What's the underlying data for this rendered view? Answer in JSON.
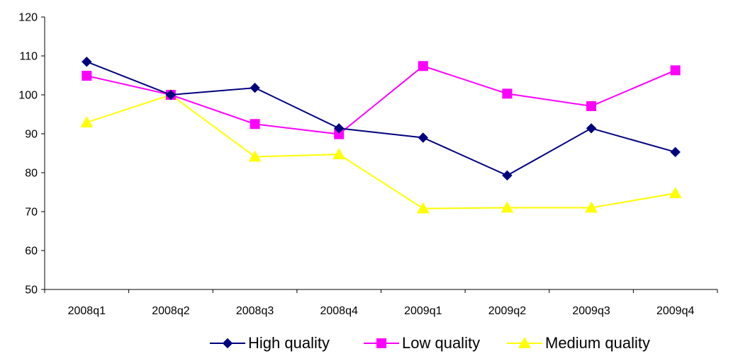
{
  "chart_data": {
    "type": "line",
    "categories": [
      "2008q1",
      "2008q2",
      "2008q3",
      "2008q4",
      "2009q1",
      "2009q2",
      "2009q3",
      "2009q4"
    ],
    "series": [
      {
        "name": "High quality",
        "color": "#00007F",
        "marker": "diamond",
        "values": [
          108.5,
          100.0,
          101.8,
          91.4,
          89.0,
          79.3,
          91.4,
          85.3
        ]
      },
      {
        "name": "Low quality",
        "color": "#FF00FF",
        "marker": "square",
        "values": [
          104.9,
          100.0,
          92.5,
          89.9,
          107.4,
          100.3,
          97.1,
          106.3
        ]
      },
      {
        "name": "Medium quality",
        "color": "#FFFF00",
        "marker": "triangle",
        "values": [
          92.9,
          100.0,
          84.1,
          84.7,
          70.8,
          71.0,
          71.0,
          74.7
        ]
      }
    ],
    "ylim": [
      50,
      120
    ],
    "yticks": [
      "50",
      "60",
      "70",
      "80",
      "90",
      "100",
      "110",
      "120"
    ],
    "title": "",
    "xlabel": "",
    "ylabel": "",
    "grid": false,
    "legend_position": "bottom-center"
  }
}
